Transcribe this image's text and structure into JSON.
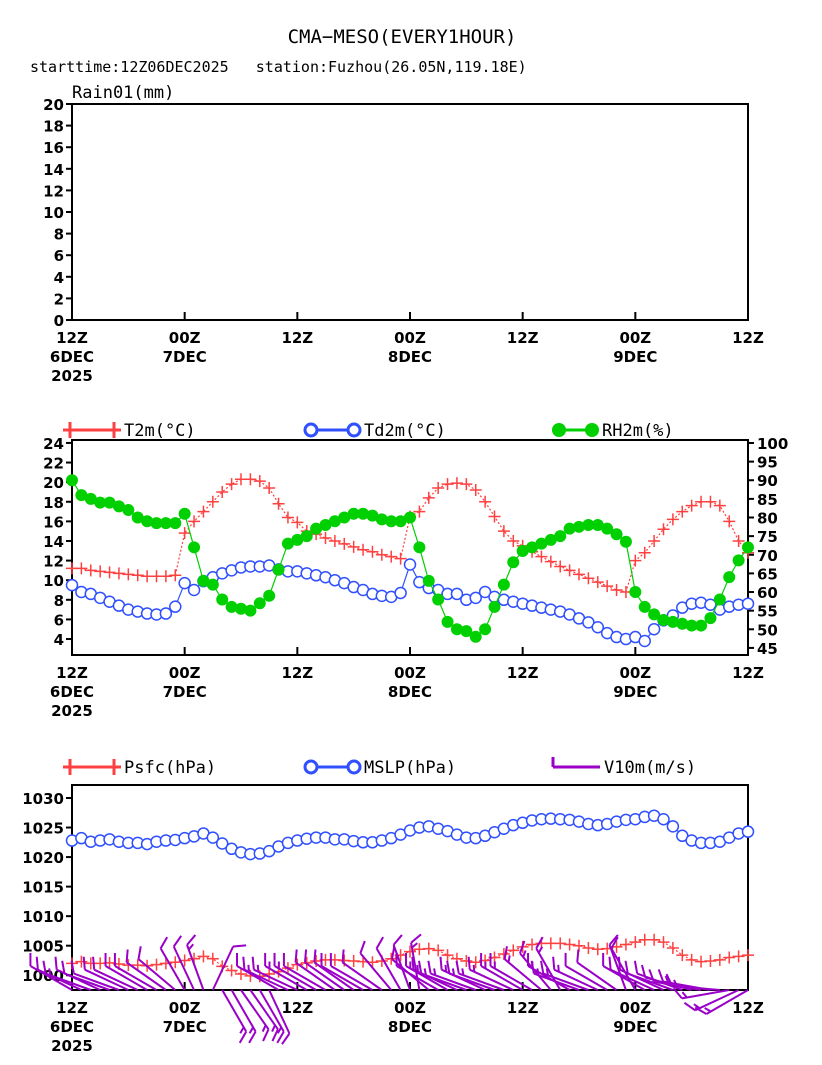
{
  "title": "CMA−MESO(EVERY1HOUR)",
  "subtitle": "starttime:12Z06DEC2025   station:Fuzhou(26.05N,119.18E)",
  "colors": {
    "t2m": "#ff4040",
    "td2m": "#3050ff",
    "rh2m": "#00d000",
    "psfc": "#ff4040",
    "mslp": "#3050ff",
    "v10m": "#9a00c8"
  },
  "x_ticks": [
    {
      "l1": "12Z",
      "l2": "6DEC",
      "l3": "2025",
      "hour": 0
    },
    {
      "l1": "00Z",
      "l2": "7DEC",
      "hour": 12
    },
    {
      "l1": "12Z",
      "hour": 24
    },
    {
      "l1": "00Z",
      "l2": "8DEC",
      "hour": 36
    },
    {
      "l1": "12Z",
      "hour": 48
    },
    {
      "l1": "00Z",
      "l2": "9DEC",
      "hour": 60
    },
    {
      "l1": "12Z",
      "hour": 72
    }
  ],
  "chart_data": [
    {
      "type": "line",
      "title": "Rain01(mm)",
      "ylabel": "Rain01(mm)",
      "ylim": [
        0,
        20
      ],
      "yticks": [
        "0",
        "2",
        "4",
        "6",
        "8",
        "10",
        "12",
        "14",
        "16",
        "18",
        "20"
      ],
      "x_hours": [
        0,
        72
      ],
      "series": []
    },
    {
      "type": "line",
      "ylim_left": [
        2.37,
        24.3
      ],
      "ylim_right": [
        43.1,
        100.8
      ],
      "yticks_left": [
        "4",
        "6",
        "8",
        "10",
        "12",
        "14",
        "16",
        "18",
        "20",
        "22",
        "24"
      ],
      "yticks_right": [
        "45",
        "50",
        "55",
        "60",
        "65",
        "70",
        "75",
        "80",
        "85",
        "90",
        "95",
        "100"
      ],
      "legend": [
        "T2m(°C)",
        "Td2m(°C)",
        "RH2m(%)"
      ],
      "series": [
        {
          "name": "T2m(°C)",
          "axis": "left",
          "marker": "plus",
          "values": [
            11.2,
            11.2,
            11.0,
            10.9,
            10.8,
            10.7,
            10.6,
            10.5,
            10.4,
            10.4,
            10.4,
            10.5,
            14.8,
            16.0,
            17.0,
            18.0,
            19.0,
            19.8,
            20.3,
            20.3,
            20.1,
            19.4,
            17.8,
            16.4,
            15.9,
            15.0,
            14.7,
            14.3,
            14.0,
            13.7,
            13.4,
            13.1,
            12.9,
            12.6,
            12.4,
            12.2,
            16.5,
            17.0,
            18.4,
            19.4,
            19.8,
            19.9,
            19.8,
            19.2,
            18.0,
            16.5,
            15.0,
            14.0,
            13.5,
            12.9,
            12.4,
            11.9,
            11.4,
            11.0,
            10.6,
            10.2,
            9.8,
            9.4,
            9.0,
            8.8,
            12.0,
            12.8,
            14.0,
            15.2,
            16.2,
            17.0,
            17.6,
            18.0,
            18.0,
            17.6,
            16.0,
            14.0,
            12.8
          ]
        },
        {
          "name": "Td2m(°C)",
          "axis": "left",
          "marker": "circle",
          "values": [
            9.5,
            8.8,
            8.6,
            8.2,
            7.8,
            7.4,
            7.0,
            6.8,
            6.6,
            6.5,
            6.6,
            7.3,
            9.7,
            9.0,
            9.9,
            10.3,
            10.7,
            11.0,
            11.3,
            11.4,
            11.4,
            11.5,
            11.1,
            10.9,
            10.9,
            10.7,
            10.5,
            10.3,
            10.0,
            9.7,
            9.3,
            9.0,
            8.6,
            8.4,
            8.3,
            8.7,
            11.6,
            9.8,
            9.2,
            9.0,
            8.6,
            8.6,
            8.0,
            8.2,
            8.8,
            8.3,
            8.0,
            7.8,
            7.6,
            7.4,
            7.2,
            7.0,
            6.8,
            6.5,
            6.1,
            5.7,
            5.2,
            4.6,
            4.2,
            4.0,
            4.2,
            3.8,
            5.0,
            5.9,
            6.4,
            7.2,
            7.6,
            7.7,
            7.5,
            7.0,
            7.3,
            7.5,
            7.6
          ]
        },
        {
          "name": "RH2m(%)",
          "axis": "right",
          "marker": "dot",
          "values": [
            90,
            86,
            85,
            84,
            84,
            83,
            82,
            80,
            79,
            78.5,
            78.5,
            78.5,
            81,
            72,
            63,
            62,
            58,
            56,
            55.5,
            55,
            57,
            59,
            66,
            73,
            74,
            75,
            77,
            78,
            79,
            80,
            81,
            81,
            80.5,
            79.5,
            79,
            79,
            80,
            72,
            63,
            58,
            52,
            50,
            49.5,
            48,
            50,
            56,
            62,
            68,
            71,
            72,
            73,
            74,
            75,
            77,
            77.5,
            78,
            78,
            77,
            75.5,
            73.5,
            60,
            56,
            54,
            52.5,
            52,
            51.5,
            51,
            51,
            53,
            58,
            64,
            68.5,
            72
          ]
        }
      ]
    },
    {
      "type": "line",
      "ylim": [
        997.5,
        1032.2
      ],
      "yticks": [
        "1000",
        "1005",
        "1010",
        "1015",
        "1020",
        "1025",
        "1030"
      ],
      "legend": [
        "Psfc(hPa)",
        "MSLP(hPa)",
        "V10m(m/s)"
      ],
      "series": [
        {
          "name": "Psfc(hPa)",
          "marker": "plus",
          "values": [
            1002,
            1002.3,
            1002,
            1002,
            1002.1,
            1001.9,
            1001.7,
            1001.7,
            1001.6,
            1001.8,
            1002,
            1002.2,
            1002.5,
            1002.8,
            1003.2,
            1002.8,
            1001.5,
            1000.8,
            1000.2,
            999.9,
            999.8,
            1000.2,
            1000.6,
            1001.2,
            1001.8,
            1002.1,
            1002.4,
            1002.6,
            1002.6,
            1002.5,
            1002.4,
            1002.3,
            1002.2,
            1002.4,
            1002.8,
            1003.4,
            1004,
            1004.4,
            1004.5,
            1004.2,
            1003.4,
            1002.8,
            1002.4,
            1002.2,
            1002.5,
            1003,
            1003.6,
            1004.2,
            1004.8,
            1005.2,
            1005.4,
            1005.4,
            1005.4,
            1005.2,
            1005,
            1004.6,
            1004.4,
            1004.5,
            1004.8,
            1005.2,
            1005.6,
            1006,
            1006,
            1005.6,
            1004.6,
            1003.4,
            1002.6,
            1002.3,
            1002.4,
            1002.6,
            1003,
            1003.2,
            1003.4
          ]
        },
        {
          "name": "MSLP(hPa)",
          "marker": "circle",
          "values": [
            1022.8,
            1023.2,
            1022.6,
            1022.8,
            1023,
            1022.6,
            1022.4,
            1022.4,
            1022.2,
            1022.6,
            1022.8,
            1022.9,
            1023.2,
            1023.5,
            1024,
            1023.3,
            1022.3,
            1021.4,
            1020.8,
            1020.5,
            1020.6,
            1021,
            1021.8,
            1022.4,
            1022.8,
            1023.1,
            1023.3,
            1023.3,
            1023,
            1023,
            1022.7,
            1022.5,
            1022.5,
            1022.8,
            1023.2,
            1023.8,
            1024.5,
            1025,
            1025.2,
            1024.8,
            1024.4,
            1023.8,
            1023.3,
            1023.2,
            1023.6,
            1024.2,
            1024.8,
            1025.4,
            1025.8,
            1026.2,
            1026.4,
            1026.5,
            1026.4,
            1026.3,
            1026,
            1025.6,
            1025.4,
            1025.6,
            1026,
            1026.3,
            1026.4,
            1026.8,
            1027,
            1026.4,
            1025.2,
            1023.6,
            1022.8,
            1022.4,
            1022.4,
            1022.6,
            1023.3,
            1024,
            1024.3
          ]
        },
        {
          "name": "V10m(m/s)",
          "marker": "barb",
          "dir_deg": [
            300,
            295,
            290,
            295,
            290,
            290,
            295,
            295,
            300,
            300,
            305,
            310,
            330,
            335,
            340,
            25,
            150,
            150,
            145,
            145,
            150,
            155,
            300,
            295,
            295,
            300,
            300,
            300,
            305,
            305,
            305,
            300,
            300,
            305,
            320,
            330,
            340,
            350,
            310,
            300,
            300,
            295,
            290,
            290,
            295,
            290,
            290,
            295,
            300,
            300,
            310,
            320,
            330,
            300,
            290,
            290,
            295,
            300,
            305,
            340,
            330,
            300,
            295,
            295,
            290,
            290,
            285,
            280,
            280,
            275,
            260,
            245,
            240
          ],
          "speed": [
            5,
            5,
            6,
            5,
            5,
            5,
            5,
            5,
            5,
            4,
            4,
            4,
            5,
            5,
            6,
            4,
            6,
            7,
            7,
            7,
            6,
            5,
            5,
            6,
            6,
            6,
            6,
            5,
            5,
            5,
            5,
            5,
            5,
            4,
            4,
            4,
            5,
            6,
            5,
            5,
            6,
            6,
            6,
            6,
            6,
            6,
            6,
            6,
            6,
            6,
            7,
            7,
            7,
            7,
            6,
            6,
            6,
            5,
            4,
            4,
            4,
            5,
            5,
            5,
            5,
            5,
            5,
            5,
            6,
            6,
            6,
            6,
            6
          ]
        }
      ]
    }
  ]
}
